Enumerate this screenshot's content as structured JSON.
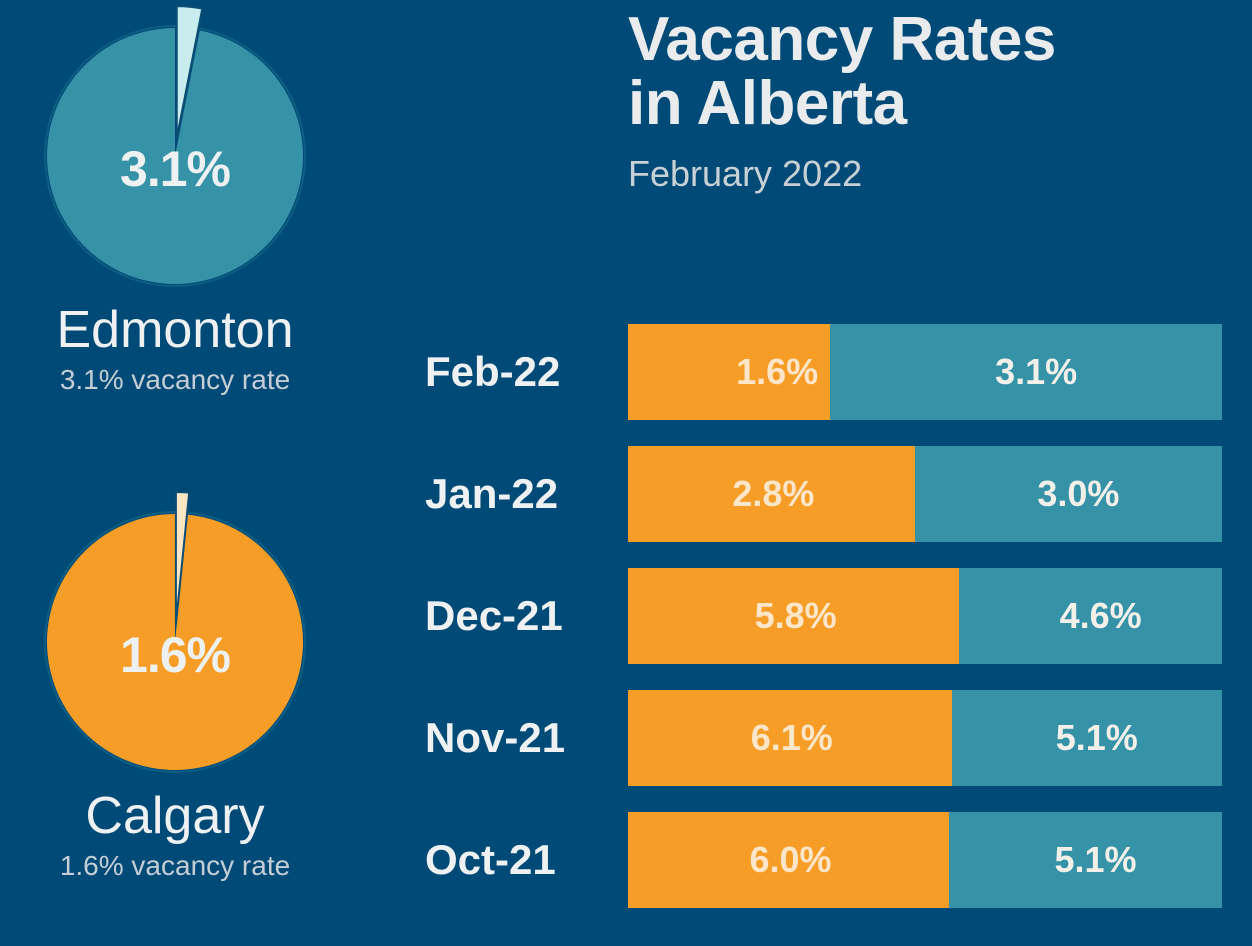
{
  "title_line1": "Vacancy Rates",
  "title_line2": "in Alberta",
  "subtitle": "February 2022",
  "colors": {
    "background": "#004a77",
    "edmonton": "#3692a7",
    "calgary": "#f69d27",
    "edmonton_slice": "#c9ecee",
    "calgary_slice": "#fde6c4"
  },
  "cities": [
    {
      "name": "Edmonton",
      "value_label": "3.1%",
      "caption": "3.1% vacancy rate",
      "rate": 3.1
    },
    {
      "name": "Calgary",
      "value_label": "1.6%",
      "caption": "1.6% vacancy rate",
      "rate": 1.6
    }
  ],
  "chart_data": [
    {
      "type": "pie",
      "slices": [
        {
          "label": "vacant",
          "value": 3.1
        },
        {
          "label": "occupied",
          "value": 96.9
        }
      ],
      "title": "Edmonton"
    },
    {
      "type": "pie",
      "slices": [
        {
          "label": "vacant",
          "value": 1.6
        },
        {
          "label": "occupied",
          "value": 98.4
        }
      ],
      "title": "Calgary"
    },
    {
      "type": "bar",
      "orientation": "horizontal",
      "stacked": true,
      "categories": [
        "Feb-22",
        "Jan-22",
        "Dec-21",
        "Nov-21",
        "Oct-21"
      ],
      "series": [
        {
          "values": [
            1.6,
            2.8,
            5.8,
            6.1,
            6.0
          ],
          "labels": [
            "1.6%",
            "2.8%",
            "5.8%",
            "6.1%",
            "6.0%"
          ],
          "color": "#f69d27"
        },
        {
          "values": [
            3.1,
            3.0,
            4.6,
            5.1,
            5.1
          ],
          "labels": [
            "3.1%",
            "3.0%",
            "4.6%",
            "5.1%",
            "5.1%"
          ],
          "color": "#3692a7"
        }
      ]
    }
  ]
}
